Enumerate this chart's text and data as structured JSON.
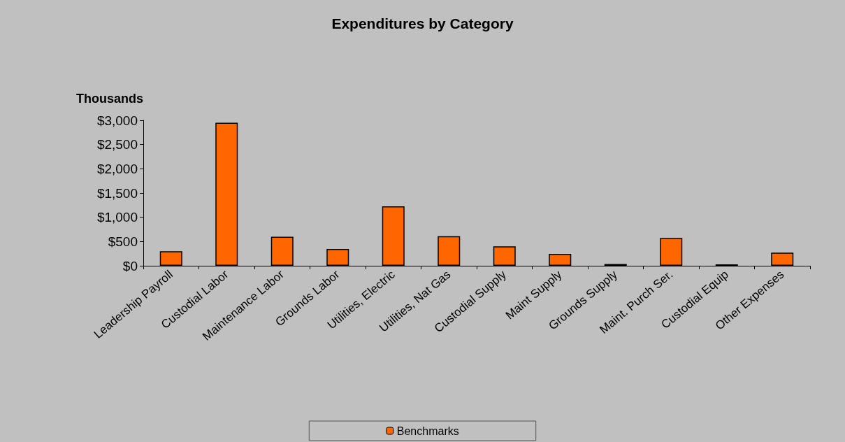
{
  "chart_data": {
    "type": "bar",
    "title": "Expenditures by Category",
    "ylabel": "Thousands",
    "categories": [
      "Leadership Payroll",
      "Custodial Labor",
      "Maintenance Labor",
      "Grounds Labor",
      "Utilities, Electric",
      "Utilities, Nat Gas",
      "Custodial Supply",
      "Maint Supply",
      "Grounds Supply",
      "Maint. Purch Ser.",
      "Custodial Equip",
      "Other Expenses"
    ],
    "series": [
      {
        "name": "Benchmarks",
        "color": "#ff6600",
        "values": [
          300,
          2950,
          600,
          345,
          1225,
          610,
          400,
          245,
          35,
          575,
          30,
          270
        ]
      }
    ],
    "ylim": [
      0,
      3000
    ],
    "yticks": [
      {
        "value": 0,
        "label": "$0"
      },
      {
        "value": 500,
        "label": "$500"
      },
      {
        "value": 1000,
        "label": "$1,000"
      },
      {
        "value": 1500,
        "label": "$1,500"
      },
      {
        "value": 2000,
        "label": "$2,000"
      },
      {
        "value": 2500,
        "label": "$2,500"
      },
      {
        "value": 3000,
        "label": "$3,000"
      }
    ],
    "grid": false,
    "legend": "bottom"
  }
}
